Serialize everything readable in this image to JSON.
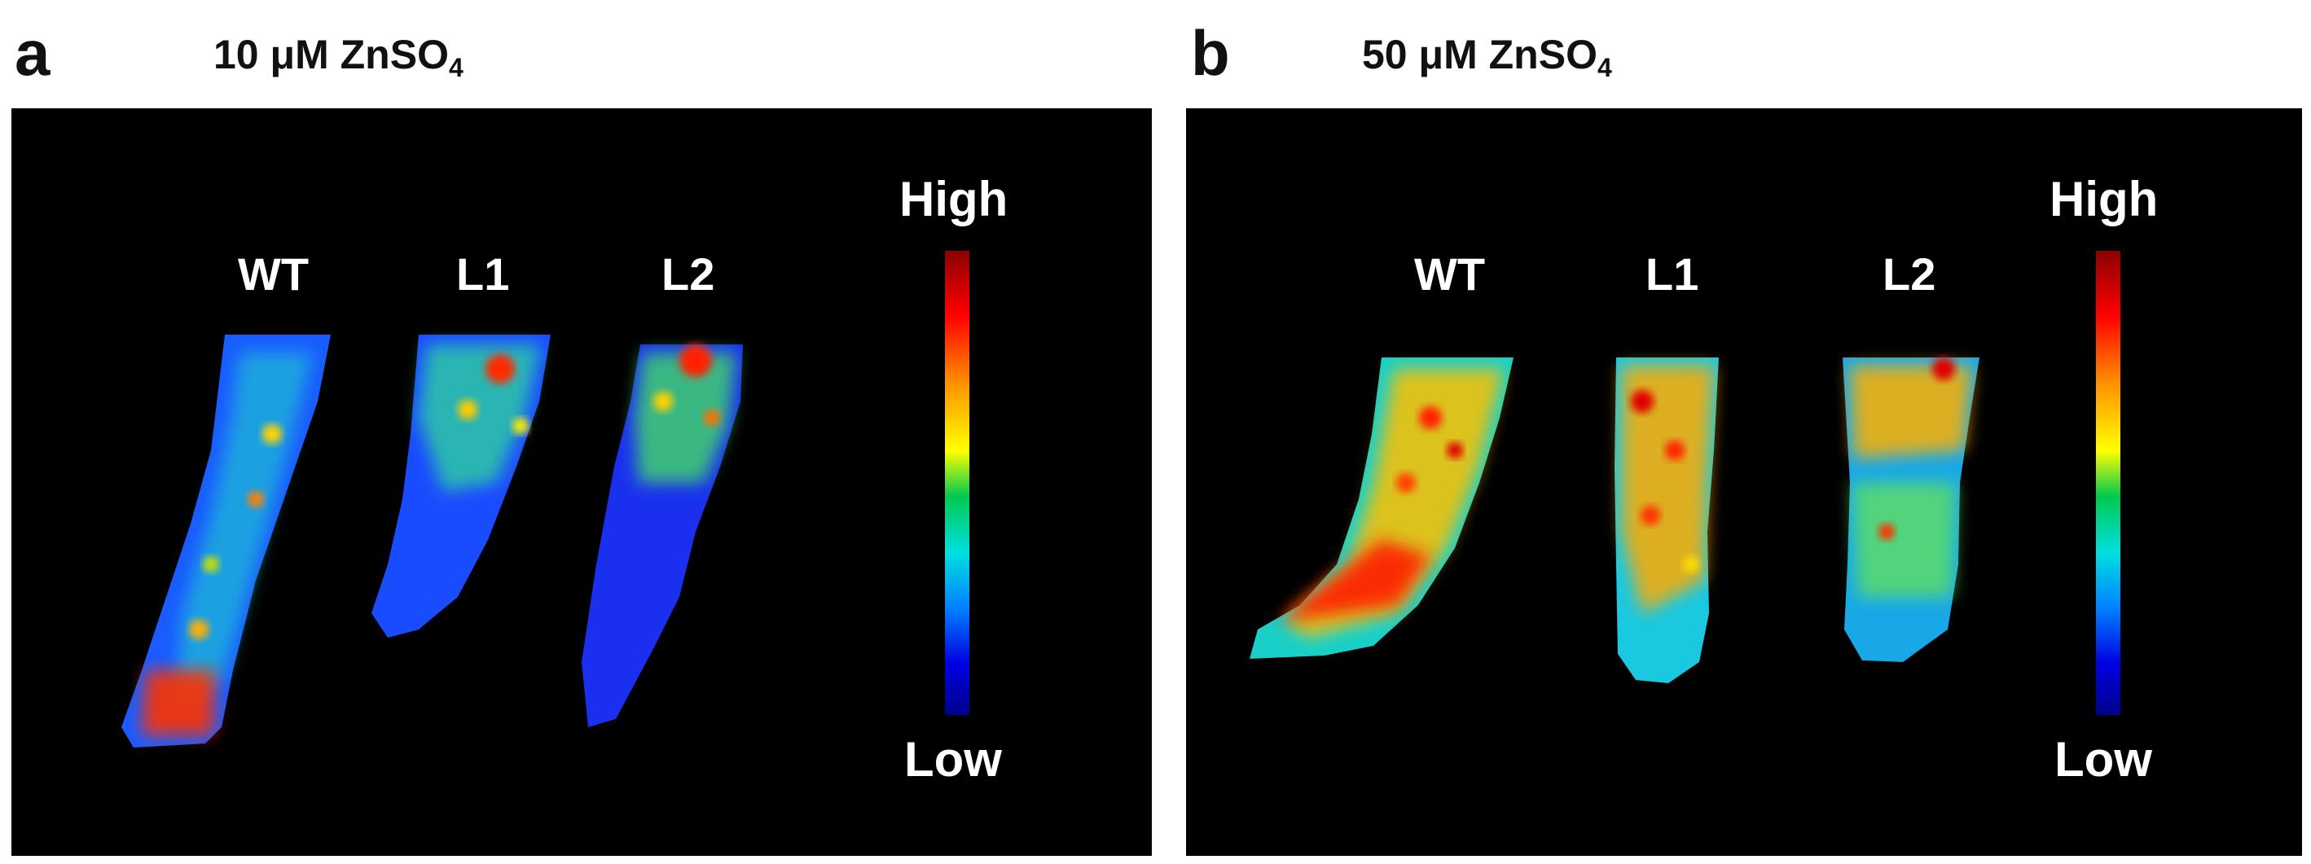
{
  "panels": [
    {
      "letter": "a",
      "title_main": "10 μM ZnSO",
      "title_sub": "4",
      "samples": [
        "WT",
        "L1",
        "L2"
      ],
      "scale": {
        "high": "High",
        "low": "Low"
      }
    },
    {
      "letter": "b",
      "title_main": "50 μM ZnSO",
      "title_sub": "4",
      "samples": [
        "WT",
        "L1",
        "L2"
      ],
      "scale": {
        "high": "High",
        "low": "Low"
      }
    }
  ]
}
